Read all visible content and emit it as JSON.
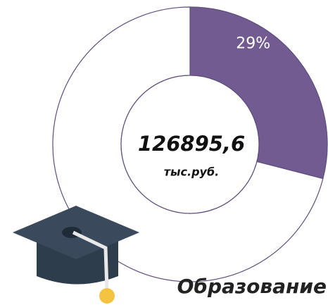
{
  "chart_data": {
    "type": "pie",
    "donut": true,
    "values": [
      29,
      71
    ],
    "value_labels": [
      "29%",
      null
    ],
    "colors": [
      "#725b91",
      "#ffffff"
    ],
    "center_value": "126895,6",
    "center_unit": "тыс.руб.",
    "label": "Образование"
  }
}
